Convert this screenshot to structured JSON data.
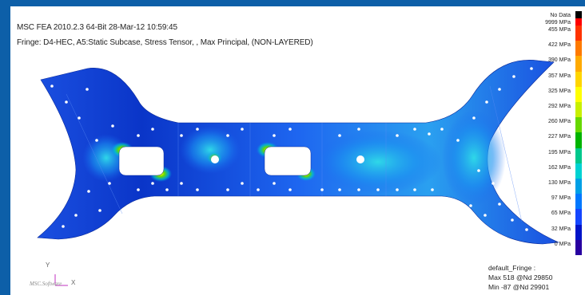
{
  "header": {
    "line1": "MSC FEA 2010.2.3 64-Bit 28-Mar-12 10:59:45",
    "line2": "Fringe: D4-HEC, A5:Static Subcase, Stress Tensor, , Max Principal, (NON-LAYERED)"
  },
  "legend": {
    "entries": [
      {
        "label": "No Data",
        "color": "#000000"
      },
      {
        "label": "9999 MPa",
        "color": "#ff0000"
      },
      {
        "label": "455 MPa",
        "color": "#ff3300"
      },
      {
        "label": "422 MPa",
        "color": "#ff7a00"
      },
      {
        "label": "390 MPa",
        "color": "#ffaa00"
      },
      {
        "label": "357 MPa",
        "color": "#ffd500"
      },
      {
        "label": "325 MPa",
        "color": "#ffff00"
      },
      {
        "label": "292 MPa",
        "color": "#c8f000"
      },
      {
        "label": "260 MPa",
        "color": "#66d800"
      },
      {
        "label": "227 MPa",
        "color": "#00b400"
      },
      {
        "label": "195 MPa",
        "color": "#00c88c"
      },
      {
        "label": "162 MPa",
        "color": "#00d2d2"
      },
      {
        "label": "130 MPa",
        "color": "#00a0e6"
      },
      {
        "label": "97 MPa",
        "color": "#0078ff"
      },
      {
        "label": "65 MPa",
        "color": "#1446ff"
      },
      {
        "label": "32 MPa",
        "color": "#0014c8"
      },
      {
        "label": "0 MPa",
        "color": "#2800a0"
      }
    ]
  },
  "summary": {
    "title": "default_Fringe :",
    "max": "Max 518 @Nd 29850",
    "min": "Min -87 @Nd 29901"
  },
  "triad": {
    "y": "Y",
    "x": "X"
  },
  "logo": "MSC.Software"
}
